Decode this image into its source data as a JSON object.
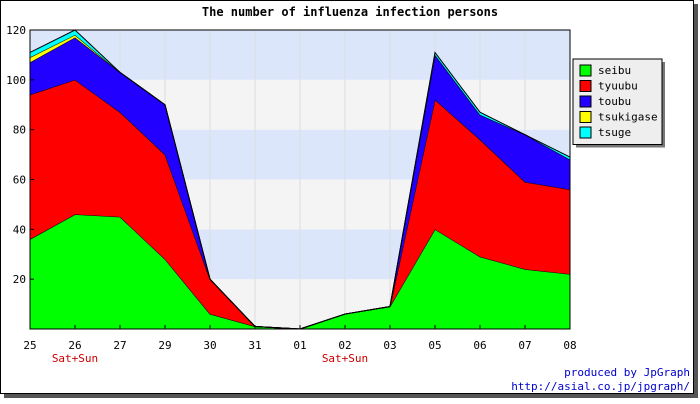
{
  "chart_data": {
    "type": "area",
    "stacked": true,
    "title": "The number of influenza infection persons",
    "xlabel": "",
    "ylabel": "",
    "ylim": [
      0,
      120
    ],
    "yticks": [
      20,
      40,
      60,
      80,
      100,
      120
    ],
    "grid": true,
    "legend_position": "right",
    "categories": [
      "25",
      "26",
      "27",
      "29",
      "30",
      "31",
      "01",
      "02",
      "03",
      "05",
      "06",
      "07",
      "08"
    ],
    "annotations": [
      {
        "category": "26",
        "text": "Sat+Sun",
        "color": "#cc0000"
      },
      {
        "category": "02",
        "text": "Sat+Sun",
        "color": "#cc0000"
      }
    ],
    "series": [
      {
        "name": "seibu",
        "color": "#00ff00",
        "values": [
          36,
          46,
          45,
          28,
          6,
          1,
          0,
          6,
          9,
          40,
          29,
          24,
          22
        ]
      },
      {
        "name": "tyuubu",
        "color": "#ff0000",
        "values": [
          58,
          54,
          42,
          42,
          14,
          0,
          0,
          0,
          0,
          52,
          47,
          35,
          34
        ]
      },
      {
        "name": "toubu",
        "color": "#2200ff",
        "values": [
          13,
          17,
          16,
          20,
          0,
          0,
          0,
          0,
          0,
          18,
          10,
          19,
          12
        ]
      },
      {
        "name": "tsukigase",
        "color": "#ffff00",
        "values": [
          2,
          1,
          0,
          0,
          0,
          0,
          0,
          0,
          0,
          0,
          0,
          0,
          0
        ]
      },
      {
        "name": "tsuge",
        "color": "#00ffff",
        "values": [
          2,
          2,
          0,
          0,
          0,
          0,
          0,
          0,
          0,
          1,
          1,
          0,
          1
        ]
      }
    ]
  },
  "footer": {
    "line1": "produced by JpGraph",
    "line2": "http://asial.co.jp/jpgraph/"
  }
}
